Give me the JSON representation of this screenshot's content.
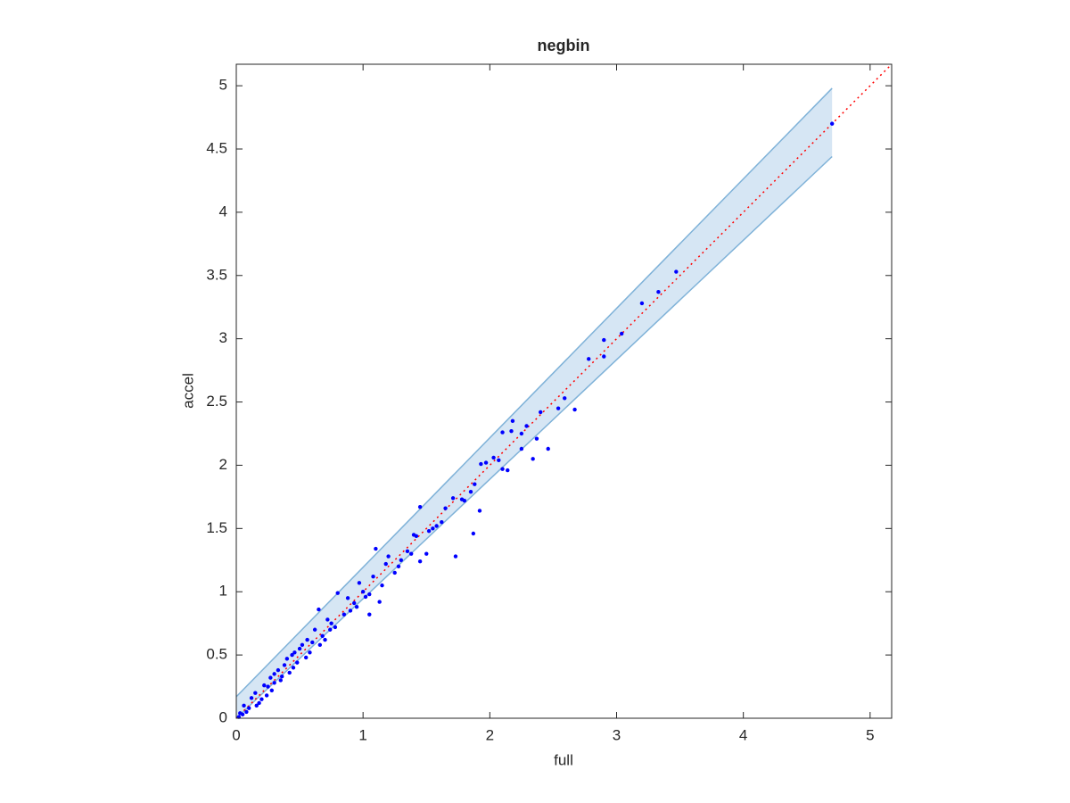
{
  "chart_data": {
    "type": "scatter",
    "title": "negbin",
    "x_label": "full",
    "y_label": "accel",
    "xlim": [
      0,
      5.17
    ],
    "ylim": [
      0,
      5.17
    ],
    "xticks": [
      0,
      1,
      2,
      3,
      4,
      5
    ],
    "yticks": [
      0,
      0.5,
      1,
      1.5,
      2,
      2.5,
      3,
      3.5,
      4,
      4.5,
      5
    ],
    "color": "#0000ff",
    "band": {
      "color": "#d6e6f4",
      "edge_color": "#7fb2d8",
      "x": [
        0,
        4.7
      ],
      "upper": [
        0.17,
        4.98
      ],
      "lower": [
        0,
        4.44
      ]
    },
    "reference": {
      "color": "#ff0000",
      "x": [
        0,
        5.17
      ],
      "y": [
        0,
        5.17
      ]
    },
    "x": [
      4.7,
      3.47,
      3.33,
      3.2,
      3.04,
      2.9,
      2.9,
      2.78,
      2.67,
      2.59,
      2.54,
      2.46,
      2.4,
      2.37,
      2.34,
      2.29,
      2.25,
      2.25,
      2.18,
      2.17,
      2.14,
      2.1,
      2.1,
      2.07,
      2.03,
      1.97,
      1.93,
      1.92,
      1.88,
      1.87,
      1.85,
      1.8,
      1.78,
      1.73,
      1.71,
      1.65,
      1.58,
      1.55,
      1.45,
      1.5,
      1.45,
      1.4,
      1.35,
      1.3,
      1.25,
      1.2,
      1.1,
      1.15,
      1.08,
      1.05,
      1.0,
      0.97,
      0.93,
      0.9,
      0.85,
      1.05,
      1.13,
      0.8,
      0.75,
      0.7,
      0.65,
      0.6,
      0.55,
      0.5,
      0.45,
      0.4,
      0.35,
      0.3,
      0.25,
      0.2,
      0.15,
      0.1,
      0.05,
      0.02,
      0.72,
      0.68,
      0.62,
      0.58,
      0.52,
      0.48,
      0.44,
      0.42,
      0.38,
      0.33,
      0.28,
      0.27,
      0.22,
      0.18,
      0.12,
      0.08,
      0.06,
      0.03,
      0.3,
      0.36,
      0.46,
      0.56,
      0.66,
      0.78,
      0.88,
      0.95,
      1.02,
      1.18,
      1.28,
      1.38,
      1.42,
      1.52,
      1.62,
      0.74,
      0.16,
      0.24
    ],
    "y": [
      4.7,
      3.53,
      3.37,
      3.28,
      3.04,
      2.99,
      2.86,
      2.84,
      2.44,
      2.53,
      2.45,
      2.13,
      2.42,
      2.21,
      2.05,
      2.31,
      2.25,
      2.13,
      2.35,
      2.27,
      1.96,
      2.26,
      1.97,
      2.04,
      2.06,
      2.02,
      2.01,
      1.64,
      1.85,
      1.46,
      1.79,
      1.72,
      1.73,
      1.28,
      1.74,
      1.66,
      1.52,
      1.5,
      1.67,
      1.3,
      1.24,
      1.45,
      1.32,
      1.25,
      1.15,
      1.28,
      1.34,
      1.05,
      1.12,
      0.98,
      1.0,
      1.07,
      0.91,
      0.85,
      0.82,
      0.82,
      0.92,
      0.99,
      0.75,
      0.62,
      0.86,
      0.6,
      0.48,
      0.55,
      0.4,
      0.47,
      0.3,
      0.35,
      0.25,
      0.15,
      0.2,
      0.08,
      0.03,
      0.01,
      0.78,
      0.65,
      0.7,
      0.52,
      0.58,
      0.44,
      0.5,
      0.36,
      0.42,
      0.38,
      0.22,
      0.32,
      0.26,
      0.12,
      0.16,
      0.05,
      0.1,
      0.04,
      0.28,
      0.33,
      0.52,
      0.62,
      0.58,
      0.72,
      0.95,
      0.88,
      0.96,
      1.22,
      1.2,
      1.3,
      1.44,
      1.48,
      1.55,
      0.7,
      0.1,
      0.18
    ]
  }
}
